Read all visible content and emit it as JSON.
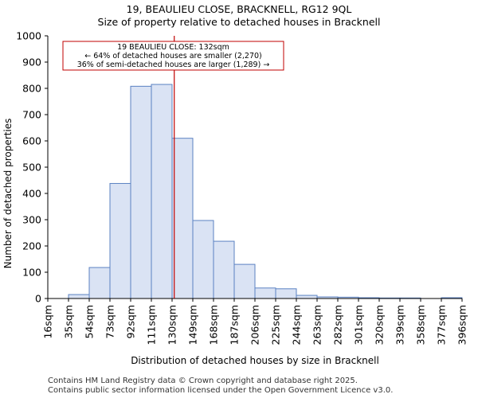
{
  "title_line1": "19, BEAULIEU CLOSE, BRACKNELL, RG12 9QL",
  "title_line2": "Size of property relative to detached houses in Bracknell",
  "footer_line1": "Contains HM Land Registry data © Crown copyright and database right 2025.",
  "footer_line2": "Contains public sector information licensed under the Open Government Licence v3.0.",
  "colors": {
    "bar_fill": "#dae3f4",
    "bar_stroke": "#5b82c2",
    "marker": "#c00000"
  },
  "chart_data": {
    "type": "bar",
    "xlabel": "Distribution of detached houses by size in Bracknell",
    "ylabel": "Number of detached properties",
    "ylim": [
      0,
      1000
    ],
    "yticks": [
      0,
      100,
      200,
      300,
      400,
      500,
      600,
      700,
      800,
      900,
      1000
    ],
    "tick_labels": [
      "16sqm",
      "35sqm",
      "54sqm",
      "73sqm",
      "92sqm",
      "111sqm",
      "130sqm",
      "149sqm",
      "168sqm",
      "187sqm",
      "206sqm",
      "225sqm",
      "244sqm",
      "263sqm",
      "282sqm",
      "301sqm",
      "320sqm",
      "339sqm",
      "358sqm",
      "377sqm",
      "396sqm"
    ],
    "bin_start": 16,
    "bin_width": 19,
    "values": [
      0,
      15,
      118,
      438,
      808,
      815,
      610,
      297,
      218,
      130,
      40,
      37,
      12,
      6,
      5,
      3,
      2,
      2,
      0,
      3
    ],
    "marker": {
      "value": 132,
      "label": "19 BEAULIEU CLOSE: 132sqm"
    },
    "annotation": [
      "19 BEAULIEU CLOSE: 132sqm",
      "← 64% of detached houses are smaller (2,270)",
      "36% of semi-detached houses are larger (1,289) →"
    ]
  }
}
